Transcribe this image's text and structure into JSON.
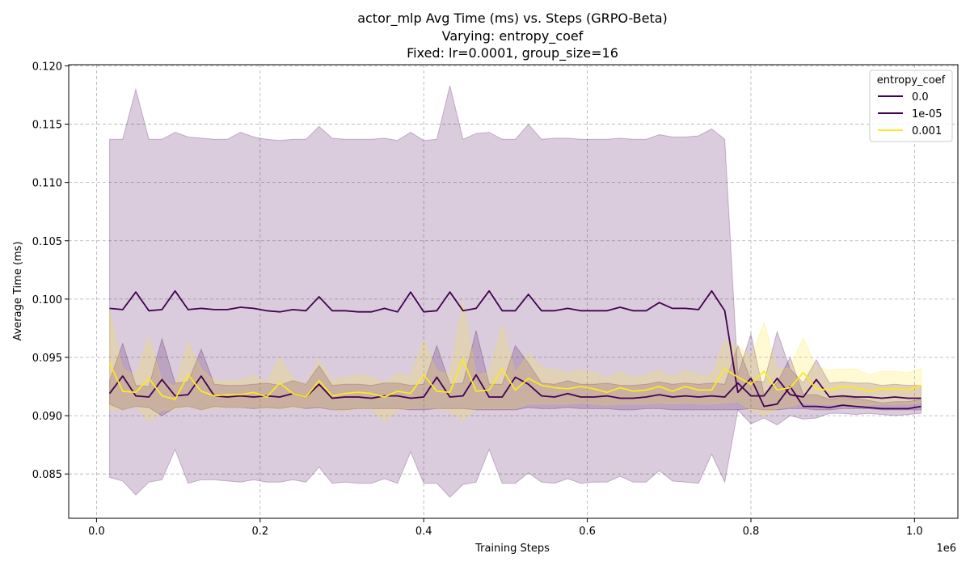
{
  "chart_data": {
    "type": "line",
    "title_lines": [
      "actor_mlp Avg Time (ms) vs. Steps (GRPO-Beta)",
      "Varying: entropy_coef",
      "Fixed: lr=0.0001, group_size=16"
    ],
    "xlabel": "Training Steps",
    "ylabel": "Average Time (ms)",
    "x_offset_label": "1e6",
    "xlim": [
      -0.034,
      1.053
    ],
    "ylim": [
      0.0812,
      0.1201
    ],
    "xticks": [
      0.0,
      0.2,
      0.4,
      0.6,
      0.8,
      1.0
    ],
    "xtick_labels": [
      "0.0",
      "0.2",
      "0.4",
      "0.6",
      "0.8",
      "1.0"
    ],
    "yticks": [
      0.085,
      0.09,
      0.095,
      0.1,
      0.105,
      0.11,
      0.115,
      0.12
    ],
    "ytick_labels": [
      "0.085",
      "0.090",
      "0.095",
      "0.100",
      "0.105",
      "0.110",
      "0.115",
      "0.120"
    ],
    "grid": true,
    "legend_title": "entropy_coef",
    "legend_position": "top-right",
    "x": [
      0.016,
      0.032,
      0.048,
      0.064,
      0.08,
      0.096,
      0.112,
      0.128,
      0.144,
      0.16,
      0.176,
      0.192,
      0.208,
      0.224,
      0.24,
      0.256,
      0.272,
      0.288,
      0.304,
      0.32,
      0.336,
      0.352,
      0.368,
      0.384,
      0.4,
      0.416,
      0.432,
      0.448,
      0.464,
      0.48,
      0.496,
      0.512,
      0.528,
      0.544,
      0.56,
      0.576,
      0.592,
      0.608,
      0.624,
      0.64,
      0.656,
      0.672,
      0.688,
      0.704,
      0.72,
      0.736,
      0.752,
      0.768,
      0.784,
      0.8,
      0.816,
      0.832,
      0.848,
      0.864,
      0.88,
      0.896,
      0.912,
      0.928,
      0.944,
      0.96,
      0.976,
      0.992,
      1.008
    ],
    "series": [
      {
        "name": "0.0",
        "color": "#440154",
        "values": [
          0.0919,
          0.0934,
          0.0917,
          0.0916,
          0.0931,
          0.0917,
          0.0918,
          0.0934,
          0.0917,
          0.0916,
          0.0917,
          0.0916,
          0.0917,
          0.0916,
          0.0919,
          0.0916,
          0.0927,
          0.0915,
          0.0916,
          0.0916,
          0.0915,
          0.0917,
          0.0917,
          0.0915,
          0.0916,
          0.0933,
          0.0916,
          0.0917,
          0.0935,
          0.0916,
          0.0916,
          0.0933,
          0.0927,
          0.0917,
          0.0916,
          0.0919,
          0.0916,
          0.0916,
          0.0917,
          0.0915,
          0.0915,
          0.0916,
          0.0918,
          0.0916,
          0.0917,
          0.0916,
          0.0917,
          0.0916,
          0.0928,
          0.0917,
          0.0917,
          0.0932,
          0.0918,
          0.0916,
          0.0931,
          0.0916,
          0.0917,
          0.0916,
          0.0916,
          0.0915,
          0.0916,
          0.0915,
          0.0915
        ],
        "band_lower": [
          0.091,
          0.0905,
          0.0908,
          0.0907,
          0.09,
          0.0907,
          0.0908,
          0.0905,
          0.0908,
          0.0907,
          0.0907,
          0.0906,
          0.0907,
          0.0906,
          0.0908,
          0.0906,
          0.0907,
          0.0905,
          0.0905,
          0.0906,
          0.0906,
          0.0906,
          0.0906,
          0.0905,
          0.0905,
          0.0906,
          0.0906,
          0.0906,
          0.0905,
          0.0905,
          0.0905,
          0.0905,
          0.0907,
          0.0906,
          0.0906,
          0.0907,
          0.0906,
          0.0906,
          0.0906,
          0.0905,
          0.0905,
          0.0906,
          0.0906,
          0.0905,
          0.0905,
          0.0905,
          0.0905,
          0.0905,
          0.0905,
          0.0906,
          0.0905,
          0.0905,
          0.0906,
          0.0906,
          0.0905,
          0.0905,
          0.0906,
          0.0906,
          0.0906,
          0.0905,
          0.0905,
          0.0905,
          0.0905
        ],
        "band_upper": [
          0.093,
          0.0962,
          0.0926,
          0.0925,
          0.0966,
          0.0928,
          0.0929,
          0.0957,
          0.0927,
          0.0926,
          0.0926,
          0.0927,
          0.0928,
          0.0926,
          0.093,
          0.0927,
          0.0943,
          0.0926,
          0.0927,
          0.0927,
          0.0926,
          0.0928,
          0.0928,
          0.0926,
          0.0927,
          0.096,
          0.0927,
          0.0928,
          0.0973,
          0.0927,
          0.0927,
          0.096,
          0.0945,
          0.0928,
          0.0927,
          0.093,
          0.0927,
          0.0927,
          0.0928,
          0.0926,
          0.0926,
          0.0927,
          0.0929,
          0.0927,
          0.0928,
          0.0927,
          0.0928,
          0.0927,
          0.096,
          0.093,
          0.0929,
          0.0972,
          0.094,
          0.0928,
          0.0948,
          0.0928,
          0.0929,
          0.0928,
          0.0928,
          0.0926,
          0.0927,
          0.0926,
          0.0926
        ]
      },
      {
        "name": "1e-05",
        "color": "#440154",
        "values": [
          0.0992,
          0.0991,
          0.1006,
          0.099,
          0.0991,
          0.1007,
          0.0991,
          0.0992,
          0.0991,
          0.0991,
          0.0993,
          0.0992,
          0.099,
          0.0989,
          0.0991,
          0.099,
          0.1002,
          0.099,
          0.099,
          0.0989,
          0.0989,
          0.0992,
          0.0989,
          0.1006,
          0.0989,
          0.099,
          0.1006,
          0.099,
          0.0992,
          0.1007,
          0.099,
          0.099,
          0.1004,
          0.099,
          0.099,
          0.0992,
          0.099,
          0.099,
          0.099,
          0.0993,
          0.099,
          0.099,
          0.0997,
          0.0992,
          0.0992,
          0.0991,
          0.1007,
          0.099,
          0.092,
          0.0932,
          0.0908,
          0.091,
          0.0925,
          0.0908,
          0.0908,
          0.0907,
          0.0909,
          0.0908,
          0.0907,
          0.0906,
          0.0906,
          0.0906,
          0.0908
        ],
        "band_lower": [
          0.0847,
          0.0844,
          0.0832,
          0.0843,
          0.0845,
          0.0871,
          0.0842,
          0.0845,
          0.0845,
          0.0844,
          0.0843,
          0.0845,
          0.0843,
          0.0843,
          0.0845,
          0.0843,
          0.0856,
          0.0842,
          0.0843,
          0.0842,
          0.0842,
          0.0846,
          0.0842,
          0.0869,
          0.0842,
          0.0842,
          0.083,
          0.0841,
          0.0843,
          0.0871,
          0.0842,
          0.0842,
          0.0851,
          0.0843,
          0.0842,
          0.0846,
          0.0842,
          0.0843,
          0.0843,
          0.0848,
          0.0843,
          0.0843,
          0.0853,
          0.0844,
          0.0843,
          0.0842,
          0.0867,
          0.0843,
          0.0905,
          0.0893,
          0.0898,
          0.0892,
          0.09,
          0.0897,
          0.0898,
          0.0902,
          0.0902,
          0.0901,
          0.0902,
          0.0901,
          0.09,
          0.0901,
          0.0902
        ],
        "band_upper": [
          0.1137,
          0.1137,
          0.118,
          0.1137,
          0.1137,
          0.1143,
          0.1139,
          0.1138,
          0.1137,
          0.1137,
          0.1143,
          0.1139,
          0.1137,
          0.1136,
          0.1137,
          0.1137,
          0.1148,
          0.1138,
          0.1137,
          0.1137,
          0.1137,
          0.1138,
          0.1136,
          0.1143,
          0.1136,
          0.1137,
          0.1183,
          0.1137,
          0.1142,
          0.1143,
          0.1137,
          0.1137,
          0.115,
          0.1137,
          0.1138,
          0.1138,
          0.1137,
          0.1137,
          0.1137,
          0.1138,
          0.1137,
          0.1137,
          0.1141,
          0.1139,
          0.1139,
          0.114,
          0.1146,
          0.1137,
          0.0935,
          0.097,
          0.0918,
          0.0928,
          0.095,
          0.0918,
          0.0918,
          0.0914,
          0.0916,
          0.0915,
          0.0913,
          0.0911,
          0.0912,
          0.0912,
          0.0914
        ]
      },
      {
        "name": "0.001",
        "color": "#fde725",
        "values": [
          0.0945,
          0.0921,
          0.092,
          0.0932,
          0.0917,
          0.0914,
          0.0935,
          0.0921,
          0.0917,
          0.0918,
          0.0918,
          0.092,
          0.0916,
          0.0928,
          0.0919,
          0.0916,
          0.093,
          0.0917,
          0.0919,
          0.092,
          0.0919,
          0.0916,
          0.0921,
          0.0919,
          0.0935,
          0.0921,
          0.092,
          0.0948,
          0.0921,
          0.0922,
          0.094,
          0.0922,
          0.0932,
          0.0926,
          0.0924,
          0.0923,
          0.0925,
          0.0923,
          0.092,
          0.0924,
          0.0921,
          0.0922,
          0.0925,
          0.0921,
          0.0925,
          0.0922,
          0.0922,
          0.094,
          0.0933,
          0.0927,
          0.0938,
          0.0922,
          0.0924,
          0.0937,
          0.0923,
          0.0922,
          0.0925,
          0.0924,
          0.0921,
          0.0923,
          0.0923,
          0.0922,
          0.0926
        ],
        "band_lower": [
          0.0905,
          0.0905,
          0.0908,
          0.0895,
          0.0905,
          0.0905,
          0.0908,
          0.0905,
          0.0906,
          0.0907,
          0.0907,
          0.0907,
          0.0906,
          0.0906,
          0.0906,
          0.0907,
          0.0908,
          0.0905,
          0.0904,
          0.0906,
          0.0906,
          0.0895,
          0.0905,
          0.0906,
          0.0907,
          0.0906,
          0.0904,
          0.0896,
          0.0906,
          0.0906,
          0.0906,
          0.0906,
          0.091,
          0.091,
          0.091,
          0.091,
          0.0911,
          0.091,
          0.0909,
          0.091,
          0.091,
          0.091,
          0.0911,
          0.091,
          0.0911,
          0.091,
          0.091,
          0.0911,
          0.0912,
          0.0905,
          0.09,
          0.0906,
          0.0908,
          0.0911,
          0.091,
          0.091,
          0.091,
          0.0909,
          0.0909,
          0.091,
          0.091,
          0.091,
          0.0911
        ],
        "band_upper": [
          0.099,
          0.094,
          0.0935,
          0.0968,
          0.093,
          0.0925,
          0.0963,
          0.094,
          0.093,
          0.093,
          0.093,
          0.0935,
          0.0928,
          0.095,
          0.0932,
          0.0927,
          0.0948,
          0.093,
          0.0933,
          0.0935,
          0.0933,
          0.0928,
          0.0936,
          0.0934,
          0.0965,
          0.0938,
          0.0936,
          0.0998,
          0.0935,
          0.0937,
          0.0978,
          0.0937,
          0.0953,
          0.0942,
          0.0939,
          0.0937,
          0.0939,
          0.0937,
          0.0932,
          0.0938,
          0.0933,
          0.0935,
          0.0939,
          0.0933,
          0.0939,
          0.0935,
          0.0935,
          0.0964,
          0.096,
          0.095,
          0.098,
          0.094,
          0.0941,
          0.0967,
          0.0942,
          0.0939,
          0.094,
          0.094,
          0.0935,
          0.0938,
          0.0938,
          0.0937,
          0.094
        ]
      }
    ]
  }
}
